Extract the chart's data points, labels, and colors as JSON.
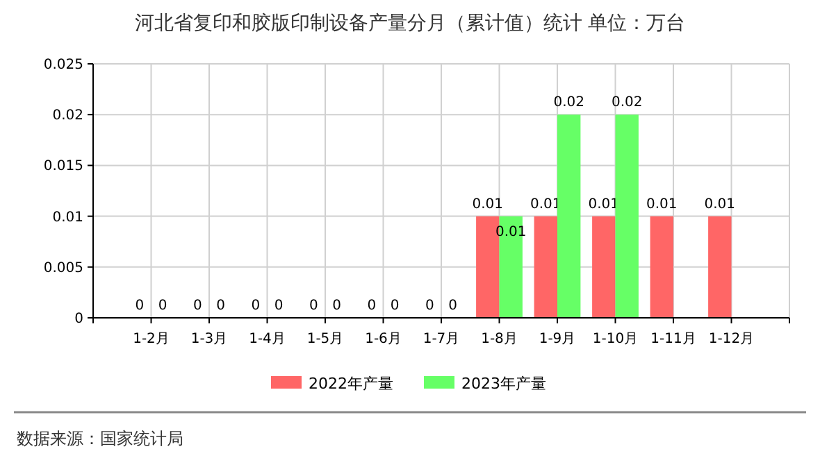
{
  "chart_data": {
    "type": "bar",
    "title": "河北省复印和胶版印制设备产量分月（累计值）统计 单位：万台",
    "categories": [
      "1-2月",
      "1-3月",
      "1-4月",
      "1-5月",
      "1-6月",
      "1-7月",
      "1-8月",
      "1-9月",
      "1-10月",
      "1-11月",
      "1-12月"
    ],
    "series": [
      {
        "name": "2022年产量",
        "color": "#ff6666",
        "values": [
          0,
          0,
          0,
          0,
          0,
          0,
          0.01,
          0.01,
          0.01,
          0.01,
          0.01
        ]
      },
      {
        "name": "2023年产量",
        "color": "#66ff66",
        "values": [
          0,
          0,
          0,
          0,
          0,
          0,
          0.01,
          0.02,
          0.02,
          null,
          null
        ]
      }
    ],
    "ylim": [
      0,
      0.025
    ],
    "yticks": [
      0,
      0.005,
      0.01,
      0.015,
      0.02,
      0.025
    ],
    "grid": true,
    "legend": "bottom",
    "data_labels": true,
    "annotations": [
      "数据来源：国家统计局"
    ]
  }
}
